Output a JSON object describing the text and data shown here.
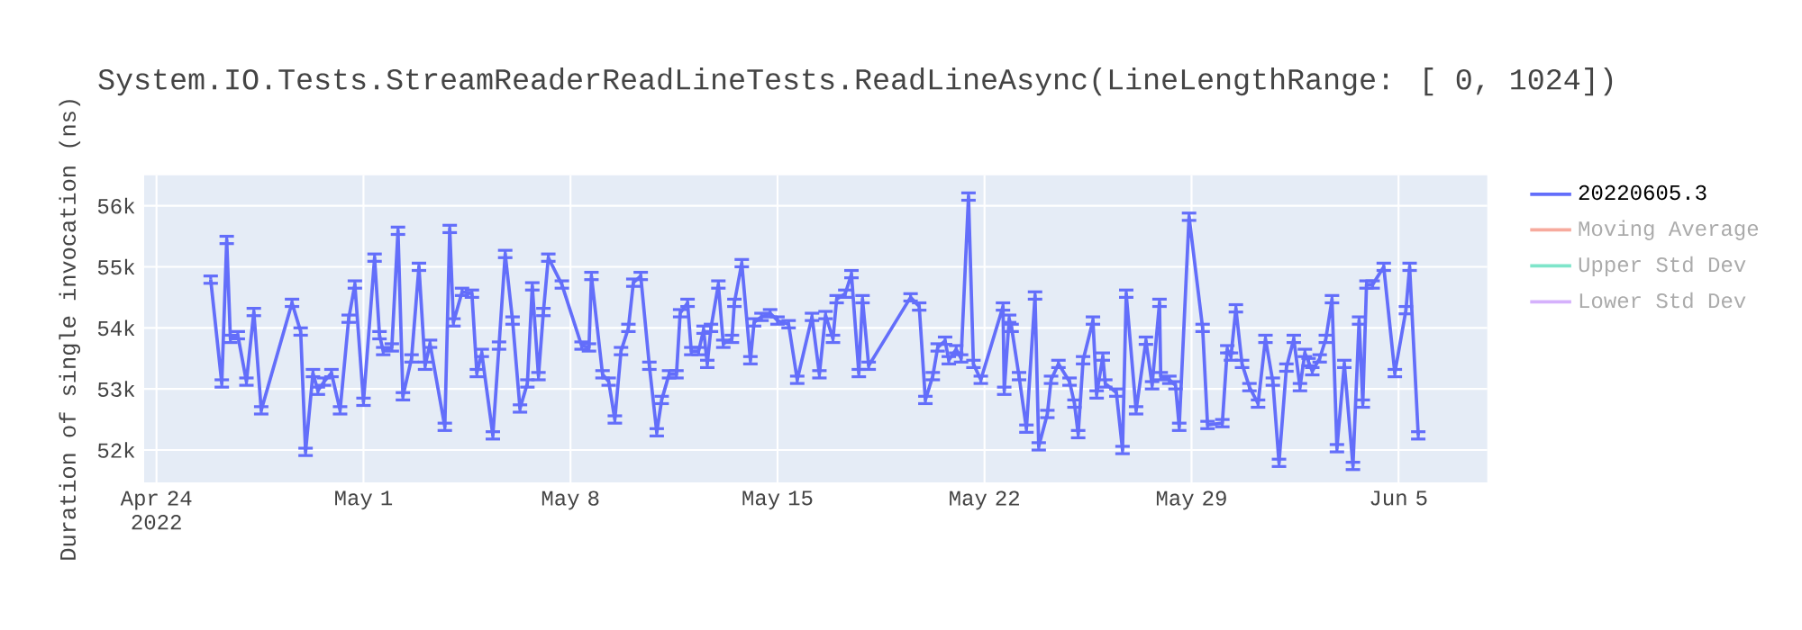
{
  "chart_data": {
    "type": "line",
    "title": "System.IO.Tests.StreamReaderReadLineTests.ReadLineAsync(LineLengthRange: [   0, 1024])",
    "ylabel": "Duration of single invocation (ns)",
    "x": [
      "2022-04-25T20:00",
      "2022-04-26T05:00",
      "2022-04-26T09:00",
      "2022-04-26T12:00",
      "2022-04-26T18:00",
      "2022-04-27T01:00",
      "2022-04-27T07:00",
      "2022-04-27T13:00",
      "2022-04-28T14:00",
      "2022-04-28T21:00",
      "2022-04-29T01:00",
      "2022-04-29T07:00",
      "2022-04-29T11:00",
      "2022-04-29T16:00",
      "2022-04-29T22:00",
      "2022-04-30T05:00",
      "2022-04-30T12:00",
      "2022-04-30T17:00",
      "2022-05-01T00:00",
      "2022-05-01T09:00",
      "2022-05-01T13:00",
      "2022-05-01T16:00",
      "2022-05-01T23:00",
      "2022-05-02T04:00",
      "2022-05-02T08:00",
      "2022-05-02T15:00",
      "2022-05-02T21:00",
      "2022-05-03T02:00",
      "2022-05-03T06:00",
      "2022-05-03T18:00",
      "2022-05-03T22:00",
      "2022-05-04T01:00",
      "2022-05-04T08:00",
      "2022-05-04T16:00",
      "2022-05-04T20:00",
      "2022-05-05T00:00",
      "2022-05-05T09:00",
      "2022-05-05T14:00",
      "2022-05-05T19:00",
      "2022-05-06T01:00",
      "2022-05-06T07:00",
      "2022-05-06T13:00",
      "2022-05-06T17:00",
      "2022-05-06T22:00",
      "2022-05-07T02:00",
      "2022-05-07T06:00",
      "2022-05-07T17:00",
      "2022-05-08T09:00",
      "2022-05-08T15:00",
      "2022-05-08T17:00",
      "2022-05-09T02:00",
      "2022-05-09T07:00",
      "2022-05-09T12:00",
      "2022-05-09T17:00",
      "2022-05-09T23:00",
      "2022-05-10T03:00",
      "2022-05-10T09:00",
      "2022-05-10T16:00",
      "2022-05-10T22:00",
      "2022-05-11T02:00",
      "2022-05-11T08:00",
      "2022-05-11T14:00",
      "2022-05-11T17:00",
      "2022-05-11T23:00",
      "2022-05-12T02:00",
      "2022-05-12T08:00",
      "2022-05-12T12:00",
      "2022-05-12T15:00",
      "2022-05-12T18:00",
      "2022-05-13T00:00",
      "2022-05-13T04:00",
      "2022-05-13T11:00",
      "2022-05-13T13:00",
      "2022-05-13T19:00",
      "2022-05-14T02:00",
      "2022-05-14T05:00",
      "2022-05-14T11:00",
      "2022-05-14T18:00",
      "2022-05-15T00:00",
      "2022-05-15T09:00",
      "2022-05-15T16:00",
      "2022-05-16T04:00",
      "2022-05-16T10:00",
      "2022-05-16T15:00",
      "2022-05-16T21:00",
      "2022-05-17T00:00",
      "2022-05-17T07:00",
      "2022-05-17T12:00",
      "2022-05-17T18:00",
      "2022-05-17T21:00",
      "2022-05-18T02:00",
      "2022-05-19T12:00",
      "2022-05-19T19:00",
      "2022-05-20T00:00",
      "2022-05-20T06:00",
      "2022-05-20T10:00",
      "2022-05-20T16:00",
      "2022-05-20T19:00",
      "2022-05-21T01:00",
      "2022-05-21T05:00",
      "2022-05-21T11:00",
      "2022-05-21T15:00",
      "2022-05-21T21:00",
      "2022-05-22T15:00",
      "2022-05-22T16:00",
      "2022-05-22T20:00",
      "2022-05-22T22:00",
      "2022-05-23T04:00",
      "2022-05-23T10:00",
      "2022-05-23T17:00",
      "2022-05-23T20:00",
      "2022-05-24T03:00",
      "2022-05-24T06:00",
      "2022-05-24T12:00",
      "2022-05-24T21:00",
      "2022-05-25T01:00",
      "2022-05-25T04:00",
      "2022-05-25T08:00",
      "2022-05-25T16:00",
      "2022-05-25T19:00",
      "2022-05-26T00:00",
      "2022-05-26T02:00",
      "2022-05-26T11:00",
      "2022-05-26T16:00",
      "2022-05-26T19:00",
      "2022-05-27T03:00",
      "2022-05-27T11:00",
      "2022-05-27T16:00",
      "2022-05-27T22:00",
      "2022-05-27T23:00",
      "2022-05-28T06:00",
      "2022-05-28T11:00",
      "2022-05-28T14:00",
      "2022-05-28T22:00",
      "2022-05-29T09:00",
      "2022-05-29T13:00",
      "2022-05-30T01:00",
      "2022-05-30T05:00",
      "2022-05-30T08:00",
      "2022-05-30T12:00",
      "2022-05-30T17:00",
      "2022-05-30T23:00",
      "2022-05-31T06:00",
      "2022-05-31T12:00",
      "2022-05-31T18:00",
      "2022-05-31T23:00",
      "2022-06-01T05:00",
      "2022-06-01T11:00",
      "2022-06-01T16:00",
      "2022-06-01T20:00",
      "2022-06-01T23:00",
      "2022-06-02T02:00",
      "2022-06-02T08:00",
      "2022-06-02T13:00",
      "2022-06-02T18:00",
      "2022-06-02T22:00",
      "2022-06-03T04:00",
      "2022-06-03T11:00",
      "2022-06-03T16:00",
      "2022-06-03T19:00",
      "2022-06-03T22:00",
      "2022-06-04T03:00",
      "2022-06-04T12:00",
      "2022-06-04T21:00",
      "2022-06-05T06:00",
      "2022-06-05T09:00",
      "2022-06-05T16:00"
    ],
    "series": [
      {
        "name": "20220605.3",
        "color": "#636efa",
        "values": [
          54790,
          53090,
          55440,
          53820,
          53880,
          53120,
          54260,
          52650,
          54410,
          53940,
          51970,
          53260,
          52970,
          53120,
          53260,
          52650,
          54150,
          54710,
          52790,
          55150,
          53880,
          53620,
          53680,
          55590,
          52880,
          53500,
          55000,
          53380,
          53740,
          52380,
          55620,
          54090,
          54590,
          54560,
          53260,
          53590,
          52240,
          53710,
          55210,
          54120,
          52680,
          53090,
          54680,
          53210,
          54260,
          55150,
          54710,
          53710,
          53680,
          54850,
          53240,
          53120,
          52500,
          53620,
          54000,
          54740,
          54850,
          53380,
          52290,
          52820,
          53240,
          53240,
          54240,
          54410,
          53620,
          53620,
          53970,
          53410,
          54000,
          54710,
          53740,
          53820,
          54410,
          55060,
          53470,
          54090,
          54180,
          54240,
          54120,
          54060,
          53150,
          54180,
          53240,
          54210,
          53820,
          54470,
          54560,
          54880,
          53260,
          54470,
          53380,
          54500,
          54350,
          52820,
          53210,
          53680,
          53790,
          53470,
          53650,
          53500,
          56150,
          53410,
          53150,
          54350,
          52970,
          54150,
          54000,
          53210,
          52350,
          54530,
          52060,
          52590,
          53150,
          53410,
          53120,
          52760,
          52260,
          53470,
          54120,
          52910,
          53530,
          53090,
          52940,
          52000,
          54560,
          52650,
          53790,
          53060,
          54410,
          53210,
          53150,
          53060,
          52380,
          55820,
          54000,
          52410,
          52440,
          53650,
          53530,
          54320,
          53410,
          53030,
          52760,
          53820,
          53120,
          51790,
          53350,
          53820,
          53030,
          53590,
          53440,
          53290,
          53500,
          53820,
          54470,
          52030,
          53410,
          51740,
          54120,
          52760,
          54710,
          54710,
          55000,
          53260,
          54290,
          55000,
          52240
        ],
        "errors": [
          60,
          60,
          60,
          60,
          60,
          60,
          60,
          60,
          60,
          60,
          60,
          60,
          60,
          60,
          60,
          60,
          60,
          60,
          60,
          60,
          60,
          60,
          60,
          60,
          60,
          60,
          60,
          60,
          60,
          60,
          60,
          60,
          60,
          60,
          60,
          60,
          60,
          60,
          60,
          60,
          60,
          60,
          60,
          60,
          60,
          60,
          60,
          60,
          60,
          60,
          60,
          60,
          60,
          60,
          60,
          60,
          60,
          60,
          60,
          60,
          60,
          60,
          60,
          60,
          60,
          60,
          60,
          60,
          60,
          60,
          60,
          60,
          60,
          60,
          60,
          60,
          60,
          60,
          60,
          60,
          60,
          60,
          60,
          60,
          60,
          60,
          60,
          60,
          60,
          60,
          60,
          60,
          60,
          60,
          60,
          60,
          60,
          60,
          60,
          60,
          60,
          60,
          60,
          60,
          60,
          60,
          60,
          60,
          60,
          60,
          60,
          60,
          60,
          60,
          60,
          60,
          60,
          60,
          60,
          60,
          60,
          60,
          60,
          60,
          60,
          60,
          60,
          60,
          60,
          60,
          60,
          60,
          60,
          60,
          60,
          60,
          60,
          60,
          60,
          60,
          60,
          60,
          60,
          60,
          60,
          60,
          60,
          60,
          60,
          60,
          60,
          60,
          60,
          60,
          60,
          60,
          60,
          60,
          60,
          60,
          60,
          60,
          60,
          60,
          60,
          60,
          60
        ]
      },
      {
        "name": "Moving Average",
        "color": "#f7aa9d",
        "values": [
          null,
          null,
          null,
          null,
          null,
          null,
          null,
          null,
          null,
          null,
          null,
          null,
          null,
          null,
          null,
          null,
          null,
          null,
          null,
          null,
          null,
          null,
          null,
          null,
          null,
          null,
          null,
          null,
          null,
          null,
          null,
          null,
          null,
          null,
          null,
          null,
          null,
          null,
          null,
          null,
          null,
          null,
          null,
          null,
          null,
          null,
          null,
          null,
          null,
          null,
          null,
          null,
          null,
          null,
          null,
          null,
          null,
          null,
          null,
          null,
          null,
          null,
          null,
          null,
          null,
          null,
          null,
          null,
          null,
          null,
          null,
          null,
          null,
          null,
          null,
          null,
          null,
          null,
          null,
          null,
          null,
          null,
          null,
          null,
          null,
          null,
          null,
          null,
          null,
          null,
          null,
          null,
          null,
          null,
          null,
          null,
          null,
          null,
          null,
          null,
          null,
          null,
          null,
          null,
          null,
          null,
          null,
          null,
          null,
          null,
          null,
          null,
          null,
          null,
          null,
          null,
          null,
          null,
          null,
          null,
          null,
          null,
          null,
          null,
          null,
          null,
          null,
          null,
          null,
          null,
          null,
          null,
          null,
          null,
          null,
          null,
          null,
          null,
          null,
          null,
          null,
          null,
          null,
          null,
          null,
          null,
          null,
          null,
          null,
          null,
          null,
          null,
          null,
          null,
          null,
          null,
          null,
          null,
          null,
          null,
          null,
          null,
          null,
          null,
          null,
          null,
          null
        ]
      },
      {
        "name": "Upper Std Dev",
        "color": "#7fe5ca",
        "values": [
          null,
          null,
          null,
          null,
          null,
          null,
          null,
          null,
          null,
          null,
          null,
          null,
          null,
          null,
          null,
          null,
          null,
          null,
          null,
          null,
          null,
          null,
          null,
          null,
          null,
          null,
          null,
          null,
          null,
          null,
          null,
          null,
          null,
          null,
          null,
          null,
          null,
          null,
          null,
          null,
          null,
          null,
          null,
          null,
          null,
          null,
          null,
          null,
          null,
          null,
          null,
          null,
          null,
          null,
          null,
          null,
          null,
          null,
          null,
          null,
          null,
          null,
          null,
          null,
          null,
          null,
          null,
          null,
          null,
          null,
          null,
          null,
          null,
          null,
          null,
          null,
          null,
          null,
          null,
          null,
          null,
          null,
          null,
          null,
          null,
          null,
          null,
          null,
          null,
          null,
          null,
          null,
          null,
          null,
          null,
          null,
          null,
          null,
          null,
          null,
          null,
          null,
          null,
          null,
          null,
          null,
          null,
          null,
          null,
          null,
          null,
          null,
          null,
          null,
          null,
          null,
          null,
          null,
          null,
          null,
          null,
          null,
          null,
          null,
          null,
          null,
          null,
          null,
          null,
          null,
          null,
          null,
          null,
          null,
          null,
          null,
          null,
          null,
          null,
          null,
          null,
          null,
          null,
          null,
          null,
          null,
          null,
          null,
          null,
          null,
          null,
          null,
          null,
          null,
          null,
          null,
          null,
          null,
          null,
          null,
          null,
          null,
          null,
          null,
          null,
          null,
          null
        ]
      },
      {
        "name": "Lower Std Dev",
        "color": "#d5b1fc",
        "values": [
          null,
          null,
          null,
          null,
          null,
          null,
          null,
          null,
          null,
          null,
          null,
          null,
          null,
          null,
          null,
          null,
          null,
          null,
          null,
          null,
          null,
          null,
          null,
          null,
          null,
          null,
          null,
          null,
          null,
          null,
          null,
          null,
          null,
          null,
          null,
          null,
          null,
          null,
          null,
          null,
          null,
          null,
          null,
          null,
          null,
          null,
          null,
          null,
          null,
          null,
          null,
          null,
          null,
          null,
          null,
          null,
          null,
          null,
          null,
          null,
          null,
          null,
          null,
          null,
          null,
          null,
          null,
          null,
          null,
          null,
          null,
          null,
          null,
          null,
          null,
          null,
          null,
          null,
          null,
          null,
          null,
          null,
          null,
          null,
          null,
          null,
          null,
          null,
          null,
          null,
          null,
          null,
          null,
          null,
          null,
          null,
          null,
          null,
          null,
          null,
          null,
          null,
          null,
          null,
          null,
          null,
          null,
          null,
          null,
          null,
          null,
          null,
          null,
          null,
          null,
          null,
          null,
          null,
          null,
          null,
          null,
          null,
          null,
          null,
          null,
          null,
          null,
          null,
          null,
          null,
          null,
          null,
          null,
          null,
          null,
          null,
          null,
          null,
          null,
          null,
          null,
          null,
          null,
          null,
          null,
          null,
          null,
          null,
          null,
          null,
          null,
          null,
          null,
          null,
          null,
          null,
          null,
          null,
          null,
          null,
          null,
          null,
          null,
          null,
          null,
          null,
          null
        ]
      }
    ],
    "xlim": [
      "2022-04-23T14:00",
      "2022-06-08T00:00"
    ],
    "xticks": [
      {
        "value": "2022-04-24",
        "label": "Apr 24 2022"
      },
      {
        "value": "2022-05-01",
        "label": "May 1"
      },
      {
        "value": "2022-05-08",
        "label": "May 8"
      },
      {
        "value": "2022-05-15",
        "label": "May 15"
      },
      {
        "value": "2022-05-22",
        "label": "May 22"
      },
      {
        "value": "2022-05-29",
        "label": "May 29"
      },
      {
        "value": "2022-06-05",
        "label": "Jun 5"
      }
    ],
    "ylim": [
      51470,
      56500
    ],
    "yticks": [
      {
        "value": 52000,
        "label": "52k"
      },
      {
        "value": 53000,
        "label": "53k"
      },
      {
        "value": 54000,
        "label": "54k"
      },
      {
        "value": 55000,
        "label": "55k"
      },
      {
        "value": 56000,
        "label": "56k"
      }
    ],
    "grid": true,
    "legend": "right",
    "line_style": "solid"
  }
}
